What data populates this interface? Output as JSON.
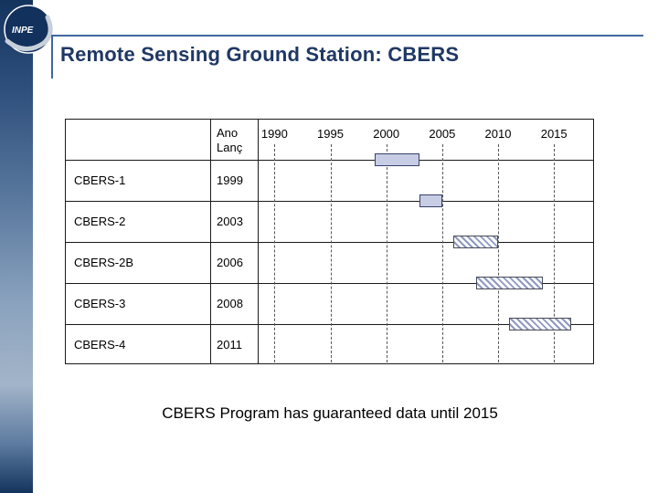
{
  "slide": {
    "title": "Remote Sensing Ground Station: CBERS",
    "caption": "CBERS Program has guaranteed data until 2015",
    "logo_text": "INPE"
  },
  "colors": {
    "title": "#1f3864",
    "rule": "#40689f",
    "solid_bar_fill": "#c6cde5",
    "hatch_color": "#8f99bd",
    "logo_circle": "#12315c"
  },
  "chart_data": {
    "type": "bar",
    "variant": "gantt-timeline",
    "title": "",
    "header": {
      "line1": "Ano",
      "line2": "Lanç"
    },
    "x_ticks": [
      "1990",
      "1995",
      "2000",
      "2005",
      "2010",
      "2015"
    ],
    "x_range": [
      1988.5,
      2018.5
    ],
    "grid": "dashed-vertical",
    "rows": [
      {
        "label": "CBERS-1",
        "launch_year": "1999",
        "bar_start": 1999,
        "bar_end": 2003,
        "bar_style": "solid"
      },
      {
        "label": "CBERS-2",
        "launch_year": "2003",
        "bar_start": 2003,
        "bar_end": 2005,
        "bar_style": "solid"
      },
      {
        "label": "CBERS-2B",
        "launch_year": "2006",
        "bar_start": 2006,
        "bar_end": 2010,
        "bar_style": "hatched"
      },
      {
        "label": "CBERS-3",
        "launch_year": "2008",
        "bar_start": 2008,
        "bar_end": 2014,
        "bar_style": "hatched"
      },
      {
        "label": "CBERS-4",
        "launch_year": "2011",
        "bar_start": 2011,
        "bar_end": 2016.5,
        "bar_style": "hatched"
      }
    ]
  }
}
